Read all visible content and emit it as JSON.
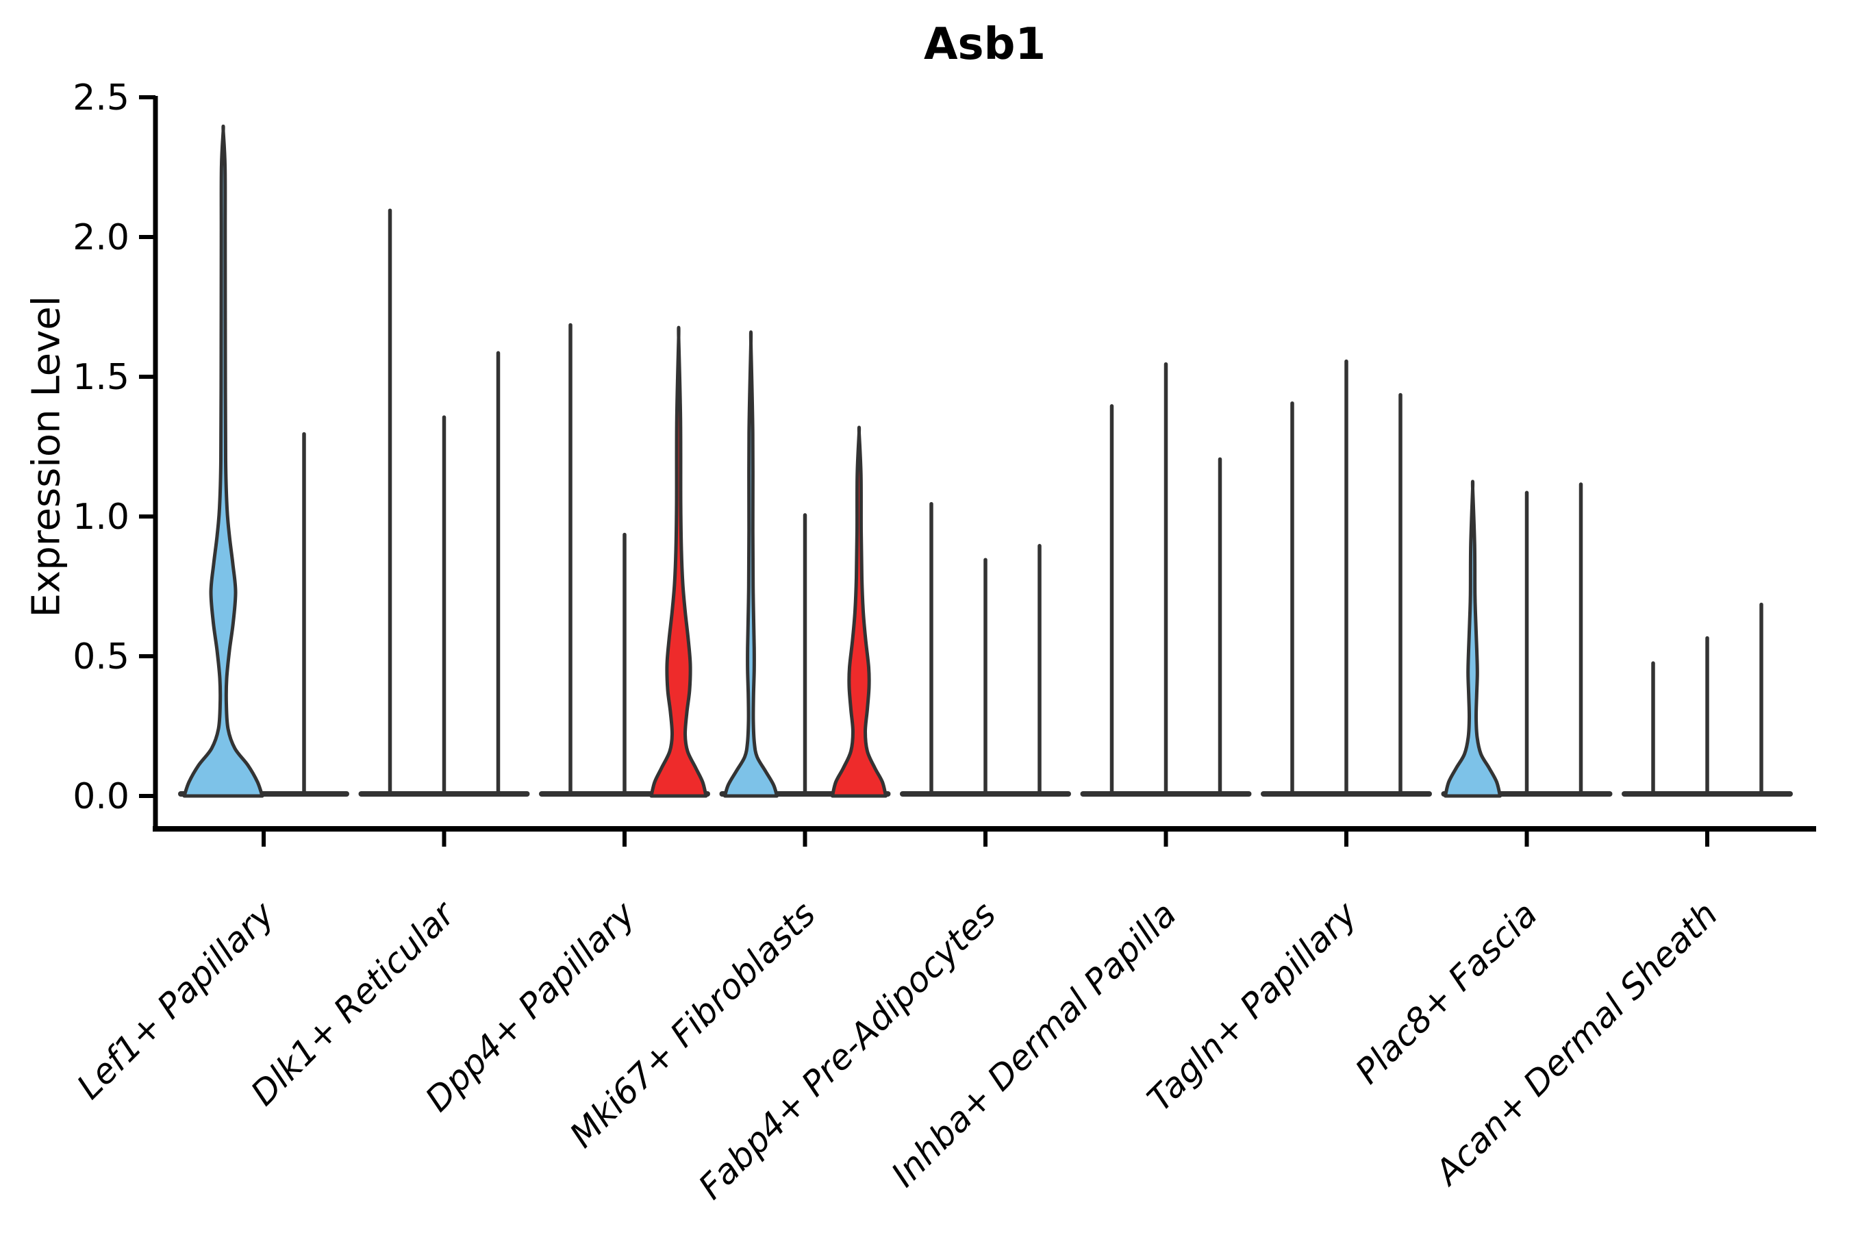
{
  "title": "Asb1",
  "chart_data": {
    "type": "violin",
    "title": "Asb1",
    "xlabel": "",
    "ylabel": "Expression Level",
    "ylim": [
      0,
      2.5
    ],
    "yticks": [
      {
        "value": 0.0,
        "label": "0.0"
      },
      {
        "value": 0.5,
        "label": "0.5"
      },
      {
        "value": 1.0,
        "label": "1.0"
      },
      {
        "value": 1.5,
        "label": "1.5"
      },
      {
        "value": 2.0,
        "label": "2.0"
      },
      {
        "value": 2.5,
        "label": "2.5"
      }
    ],
    "legend": "none",
    "grid": false,
    "colors": {
      "blue": "#7dc2e8",
      "red": "#ee2b2b",
      "outline": "#333333",
      "spine": "#000000"
    },
    "groups": [
      {
        "label": "Lef1+ Papillary",
        "violins": [
          {
            "max": 2.38,
            "fill": "blue",
            "profile": [
              [
                0,
                57
              ],
              [
                0.05,
                50
              ],
              [
                0.11,
                36
              ],
              [
                0.17,
                17
              ],
              [
                0.24,
                7
              ],
              [
                0.33,
                4.5
              ],
              [
                0.42,
                5
              ],
              [
                0.52,
                9
              ],
              [
                0.62,
                14.5
              ],
              [
                0.73,
                18
              ],
              [
                0.83,
                14
              ],
              [
                0.93,
                9
              ],
              [
                1.03,
                5.5
              ],
              [
                1.2,
                3.5
              ],
              [
                1.6,
                3
              ],
              [
                2.0,
                2.8
              ],
              [
                2.25,
                2.6
              ],
              [
                2.38,
                0
              ]
            ]
          },
          {
            "max": 1.3,
            "fill": null
          }
        ]
      },
      {
        "label": "Dlk1+ Reticular",
        "violins": [
          {
            "max": 2.1,
            "fill": null
          },
          {
            "max": 1.36,
            "fill": null
          },
          {
            "max": 1.59,
            "fill": null
          }
        ]
      },
      {
        "label": "Dpp4+ Papillary",
        "violins": [
          {
            "max": 1.69,
            "fill": null
          },
          {
            "max": 0.94,
            "fill": null
          },
          {
            "max": 1.64,
            "fill": "red",
            "profile": [
              [
                0,
                40
              ],
              [
                0.05,
                35
              ],
              [
                0.1,
                25
              ],
              [
                0.16,
                13
              ],
              [
                0.22,
                9.5
              ],
              [
                0.3,
                12
              ],
              [
                0.38,
                16
              ],
              [
                0.47,
                17
              ],
              [
                0.56,
                14
              ],
              [
                0.66,
                9.5
              ],
              [
                0.76,
                6
              ],
              [
                0.88,
                4
              ],
              [
                1.05,
                3
              ],
              [
                1.35,
                2.7
              ],
              [
                1.64,
                0
              ]
            ]
          }
        ]
      },
      {
        "label": "Mki67+ Fibroblasts",
        "violins": [
          {
            "max": 1.62,
            "fill": "blue",
            "profile": [
              [
                0,
                38
              ],
              [
                0.04,
                33
              ],
              [
                0.09,
                21
              ],
              [
                0.14,
                9
              ],
              [
                0.19,
                5
              ],
              [
                0.27,
                3.5
              ],
              [
                0.36,
                3.8
              ],
              [
                0.45,
                4.8
              ],
              [
                0.53,
                4.8
              ],
              [
                0.63,
                4
              ],
              [
                0.75,
                3.2
              ],
              [
                0.95,
                2.8
              ],
              [
                1.3,
                2.7
              ],
              [
                1.62,
                0
              ]
            ]
          },
          {
            "max": 1.01,
            "fill": null
          },
          {
            "max": 1.3,
            "fill": "red",
            "profile": [
              [
                0,
                39
              ],
              [
                0.05,
                34
              ],
              [
                0.1,
                23
              ],
              [
                0.16,
                12
              ],
              [
                0.23,
                9
              ],
              [
                0.31,
                12
              ],
              [
                0.39,
                14.5
              ],
              [
                0.46,
                14
              ],
              [
                0.56,
                9.5
              ],
              [
                0.66,
                6
              ],
              [
                0.78,
                4
              ],
              [
                0.95,
                3
              ],
              [
                1.15,
                2.7
              ],
              [
                1.3,
                0
              ]
            ]
          }
        ]
      },
      {
        "label": "Fabp4+ Pre-Adipocytes",
        "violins": [
          {
            "max": 1.05,
            "fill": null
          },
          {
            "max": 0.85,
            "fill": null
          },
          {
            "max": 0.9,
            "fill": null
          }
        ]
      },
      {
        "label": "Inhba+ Dermal Papilla",
        "violins": [
          {
            "max": 1.4,
            "fill": null
          },
          {
            "max": 1.55,
            "fill": null
          },
          {
            "max": 1.21,
            "fill": null
          }
        ]
      },
      {
        "label": "Tagln+ Papillary",
        "violins": [
          {
            "max": 1.41,
            "fill": null
          },
          {
            "max": 1.56,
            "fill": null
          },
          {
            "max": 1.44,
            "fill": null
          }
        ]
      },
      {
        "label": "Plac8+ Fascia",
        "violins": [
          {
            "max": 1.1,
            "fill": "blue",
            "profile": [
              [
                0,
                40
              ],
              [
                0.05,
                35
              ],
              [
                0.1,
                24
              ],
              [
                0.15,
                12
              ],
              [
                0.21,
                6.5
              ],
              [
                0.28,
                5
              ],
              [
                0.36,
                5.8
              ],
              [
                0.44,
                6.8
              ],
              [
                0.52,
                6
              ],
              [
                0.62,
                4.5
              ],
              [
                0.72,
                3.3
              ],
              [
                0.9,
                2.8
              ],
              [
                1.1,
                0
              ]
            ]
          },
          {
            "max": 1.09,
            "fill": null
          },
          {
            "max": 1.12,
            "fill": null
          }
        ]
      },
      {
        "label": "Acan+ Dermal Sheath",
        "violins": [
          {
            "max": 0.48,
            "fill": null
          },
          {
            "max": 0.57,
            "fill": null
          },
          {
            "max": 0.69,
            "fill": null
          }
        ]
      }
    ]
  }
}
